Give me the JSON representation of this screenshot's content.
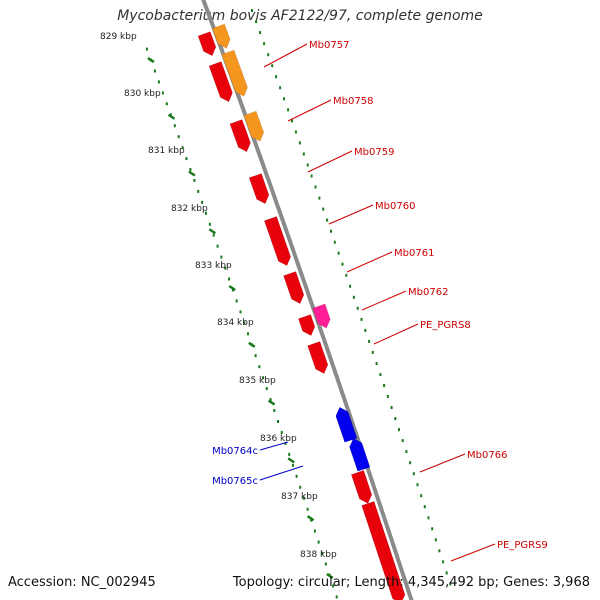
{
  "title": "Mycobacterium bovis AF2122/97, complete genome",
  "footer": {
    "accession": "Accession: NC_002945",
    "summary": "Topology: circular; Length: 4,345,492 bp; Genes: 3,968"
  },
  "colors": {
    "backbone": "#8a8a8a",
    "tick_dots": "#1b7a1b",
    "gene_red": "#e8000b",
    "gene_orange": "#f5961e",
    "gene_pink": "#ff1e96",
    "gene_blue": "#0000ee",
    "label_forward": "#cc0000",
    "label_reverse": "#0000cc"
  },
  "scale_labels": [
    "829 kbp",
    "830 kbp",
    "831 kbp",
    "832 kbp",
    "833 kbp",
    "834 kbp",
    "835 kbp",
    "836 kbp",
    "837 kbp",
    "838 kbp"
  ],
  "gene_labels": [
    {
      "text": "Mb0757",
      "strand": "forward"
    },
    {
      "text": "Mb0758",
      "strand": "forward"
    },
    {
      "text": "Mb0759",
      "strand": "forward"
    },
    {
      "text": "Mb0760",
      "strand": "forward"
    },
    {
      "text": "Mb0761",
      "strand": "forward"
    },
    {
      "text": "Mb0762",
      "strand": "forward"
    },
    {
      "text": "PE_PGRS8",
      "strand": "forward"
    },
    {
      "text": "Mb0764c",
      "strand": "reverse"
    },
    {
      "text": "Mb0765c",
      "strand": "reverse"
    },
    {
      "text": "Mb0766",
      "strand": "forward"
    },
    {
      "text": "PE_PGRS9",
      "strand": "forward"
    }
  ]
}
